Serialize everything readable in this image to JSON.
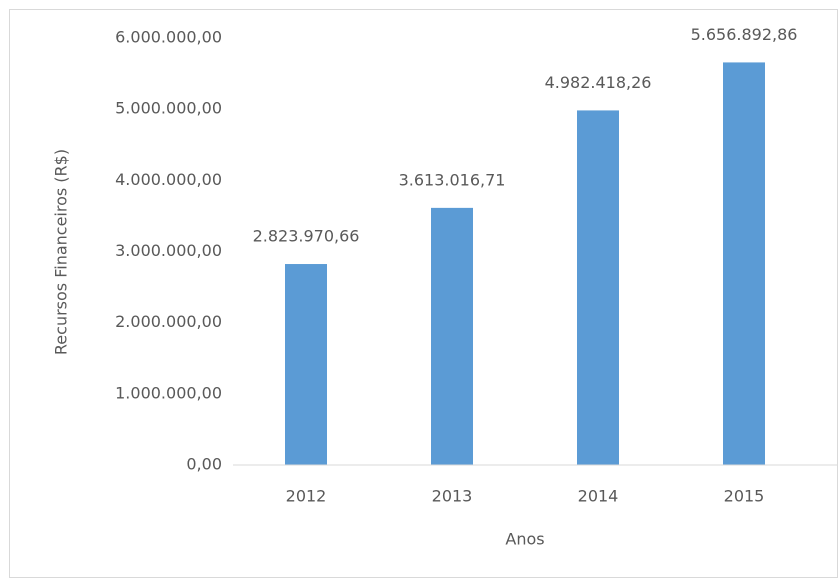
{
  "chart_data": {
    "type": "bar",
    "x_label": "Anos",
    "y_label": "Recursos Financeiros (R$)",
    "categories": [
      "2012",
      "2013",
      "2014",
      "2015"
    ],
    "values": [
      2823970.66,
      3613016.71,
      4982418.26,
      5656892.86
    ],
    "value_labels": [
      "2.823.970,66",
      "3.613.016,71",
      "4.982.418,26",
      "5.656.892,86"
    ],
    "color": "#5b9bd5",
    "ylim": [
      0,
      6000000
    ],
    "yticks": [
      {
        "value": 0,
        "label": "0,00"
      },
      {
        "value": 1000000,
        "label": "1.000.000,00"
      },
      {
        "value": 2000000,
        "label": "2.000.000,00"
      },
      {
        "value": 3000000,
        "label": "3.000.000,00"
      },
      {
        "value": 4000000,
        "label": "4.000.000,00"
      },
      {
        "value": 5000000,
        "label": "5.000.000,00"
      },
      {
        "value": 6000000,
        "label": "6.000.000,00"
      }
    ],
    "grid": false
  }
}
